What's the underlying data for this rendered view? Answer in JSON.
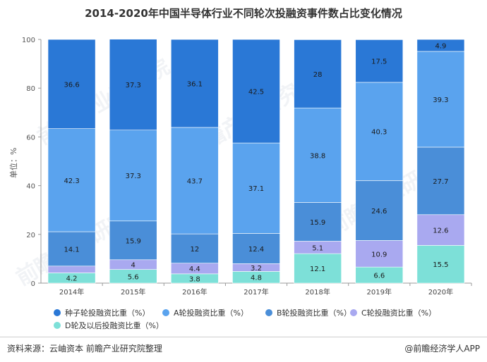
{
  "title": "2014-2020年中国半导体行业不同轮次投融资事件数占比变化情况",
  "source": "资料来源：云岫资本 前瞻产业研究院整理",
  "brand": "@前瞻经济学人APP",
  "watermark": "前瞻产业研究院",
  "chart_data": {
    "type": "bar",
    "stacked": true,
    "categories": [
      "2014年",
      "2015年",
      "2016年",
      "2017年",
      "2018年",
      "2019年",
      "2020年"
    ],
    "ylabel": "单位：%",
    "ylim": [
      0,
      100
    ],
    "yticks": [
      0,
      20,
      40,
      60,
      80,
      100
    ],
    "grid": false,
    "legend_position": "bottom",
    "series": [
      {
        "name": "D轮及以后投融资比重（%）",
        "color": "#7de0d8",
        "values": [
          4.2,
          5.6,
          3.8,
          4.8,
          12.1,
          6.6,
          15.5
        ]
      },
      {
        "name": "C轮投融资比重（%）",
        "color": "#a9a9f0",
        "values": [
          2.8,
          4,
          4.4,
          3.2,
          5.1,
          10.9,
          12.6
        ]
      },
      {
        "name": "B轮投融资比重（%）",
        "color": "#4a8ed8",
        "values": [
          14.1,
          15.9,
          12,
          12.4,
          15.9,
          24.6,
          27.7
        ]
      },
      {
        "name": "A轮投融资比重（%）",
        "color": "#5aa3ee",
        "values": [
          42.3,
          37.3,
          43.7,
          37.1,
          38.8,
          40.3,
          39.3
        ]
      },
      {
        "name": "种子轮投融资比重（%）",
        "color": "#2a78d6",
        "values": [
          36.6,
          37.3,
          36.1,
          42.5,
          28,
          17.5,
          4.9
        ]
      }
    ],
    "data_labels": [
      [
        "4.2",
        "5.6",
        "3.8",
        "4.8",
        "12.1",
        "6.6",
        "15.5"
      ],
      [
        "",
        "4",
        "4.4",
        "3.2",
        "5.1",
        "10.9",
        "12.6"
      ],
      [
        "14.1",
        "15.9",
        "12",
        "12.4",
        "15.9",
        "24.6",
        "27.7"
      ],
      [
        "42.3",
        "37.3",
        "43.7",
        "37.1",
        "38.8",
        "40.3",
        "39.3"
      ],
      [
        "36.6",
        "37.3",
        "36.1",
        "42.5",
        "28",
        "17.5",
        "4.9"
      ]
    ]
  },
  "legend": [
    {
      "label": "种子轮投融资比重（%）",
      "color": "#2a78d6"
    },
    {
      "label": "A轮投融资比重（%）",
      "color": "#5aa3ee"
    },
    {
      "label": "B轮投融资比重（%）",
      "color": "#4a8ed8"
    },
    {
      "label": "C轮投融资比重（%）",
      "color": "#a9a9f0"
    },
    {
      "label": "D轮及以后投融资比重（%）",
      "color": "#7de0d8"
    }
  ]
}
